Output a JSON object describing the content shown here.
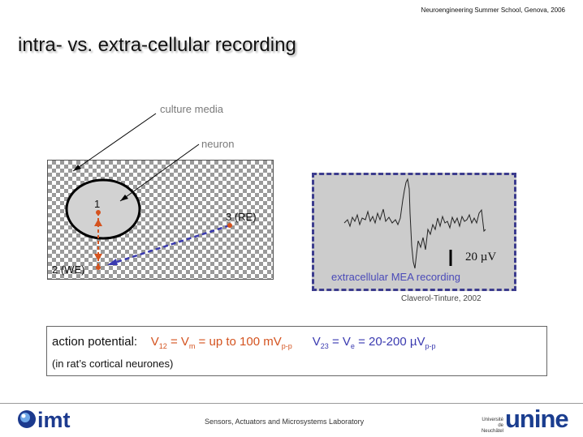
{
  "header": {
    "note": "Neuroengineering Summer School, Genova, 2006"
  },
  "title": "intra- vs. extra-cellular recording",
  "diagram": {
    "culture_media_label": "culture media",
    "neuron_label": "neuron",
    "electrode_1_label": "1",
    "electrode_2_label": "2 (WE)",
    "electrode_3_label": "3 (RE)"
  },
  "mea": {
    "scale_bar_label": "20 µV",
    "caption": "extracellular MEA recording",
    "citation": "Claverol-Tinture, 2002"
  },
  "action_potential": {
    "lead": "action potential:",
    "v12_label": "V",
    "v12_sub": "12",
    "vm_label": " = V",
    "vm_sub": "m",
    "vm_value": " = up to 100 mV",
    "vm_value_sub": "p-p",
    "v23_label": "V",
    "v23_sub": "23",
    "ve_label": " = V",
    "ve_sub": "e",
    "ve_value": " = 20-200 µV",
    "ve_value_sub": "p-p",
    "note": "(in rat’s cortical neurones)"
  },
  "footer": {
    "lab": "Sensors, Actuators and Microsystems Laboratory",
    "logo_left": "imt",
    "logo_right": "unine",
    "logo_right_small": "Université de Neuchâtel"
  },
  "colors": {
    "intracellular": "#d4531f",
    "extracellular": "#3a3ab0",
    "mea_background": "#cccccc"
  }
}
